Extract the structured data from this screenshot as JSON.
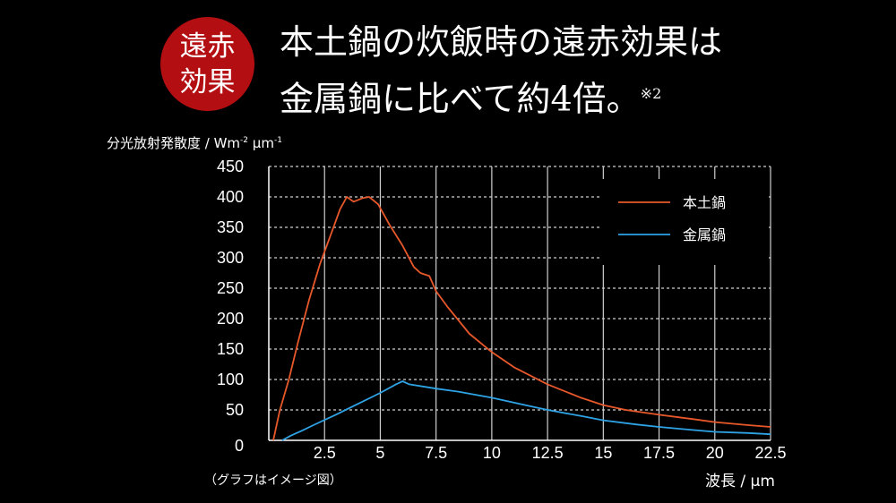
{
  "badge": {
    "text": "遠赤効果",
    "color": "#b30f12"
  },
  "headline": {
    "line1": "本土鍋の炊飯時の遠赤効果は",
    "line2": "金属鍋に比べて約4倍。",
    "note": "※2"
  },
  "caption": "（グラフはイメージ図）",
  "chart_data": {
    "type": "line",
    "ylabel": "分光放射発散度 / Wm-2 μm-1",
    "xlabel": "波長 / μm",
    "xlim": [
      0,
      22.5
    ],
    "ylim": [
      0,
      450
    ],
    "x_ticks": [
      "2.5",
      "5",
      "7.5",
      "10",
      "12.5",
      "15",
      "17.5",
      "20",
      "22.5"
    ],
    "y_ticks": [
      "0",
      "50",
      "100",
      "150",
      "200",
      "250",
      "300",
      "350",
      "400",
      "450"
    ],
    "grid": true,
    "legend_position": "top-right",
    "series": [
      {
        "name": "本土鍋",
        "color": "#e8582a",
        "x": [
          0.2,
          0.5,
          0.9,
          1.3,
          1.8,
          2.3,
          2.8,
          3.2,
          3.5,
          3.8,
          4.2,
          4.5,
          4.9,
          5.4,
          6.0,
          6.5,
          6.8,
          7.2,
          7.5,
          8.0,
          9.0,
          10.0,
          11.0,
          12.5,
          14.0,
          15.0,
          16.0,
          17.5,
          19.0,
          20.0,
          21.5,
          22.5
        ],
        "y": [
          0,
          50,
          100,
          160,
          230,
          290,
          340,
          380,
          400,
          392,
          398,
          400,
          388,
          355,
          320,
          285,
          275,
          270,
          245,
          220,
          175,
          145,
          120,
          92,
          70,
          58,
          50,
          42,
          35,
          30,
          25,
          22
        ]
      },
      {
        "name": "金属鍋",
        "color": "#2ea3e6",
        "x": [
          0.6,
          1.0,
          1.5,
          2.0,
          3.0,
          4.0,
          5.0,
          5.7,
          6.0,
          6.3,
          7.0,
          7.5,
          8.5,
          10.0,
          11.5,
          12.5,
          14.0,
          15.0,
          16.5,
          17.5,
          19.0,
          20.0,
          21.5,
          22.5
        ],
        "y": [
          0,
          8,
          16,
          25,
          42,
          60,
          78,
          92,
          97,
          92,
          88,
          85,
          80,
          70,
          58,
          50,
          40,
          33,
          26,
          22,
          17,
          14,
          12,
          10
        ]
      }
    ]
  }
}
